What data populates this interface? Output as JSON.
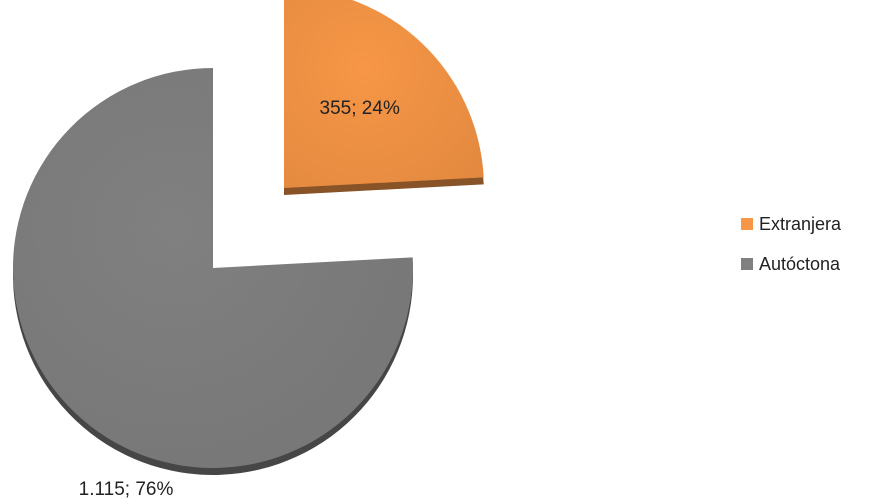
{
  "chart_data": {
    "type": "pie",
    "title": "",
    "series": [
      {
        "name": "Extranjera",
        "value": 355,
        "percent": 24,
        "label": "355; 24%",
        "color": "#F79646",
        "exploded": true
      },
      {
        "name": "Autóctona",
        "value": 1115,
        "percent": 76,
        "label": "1.115; 76%",
        "color": "#808080",
        "exploded": false
      }
    ],
    "legend_placement": "right"
  }
}
